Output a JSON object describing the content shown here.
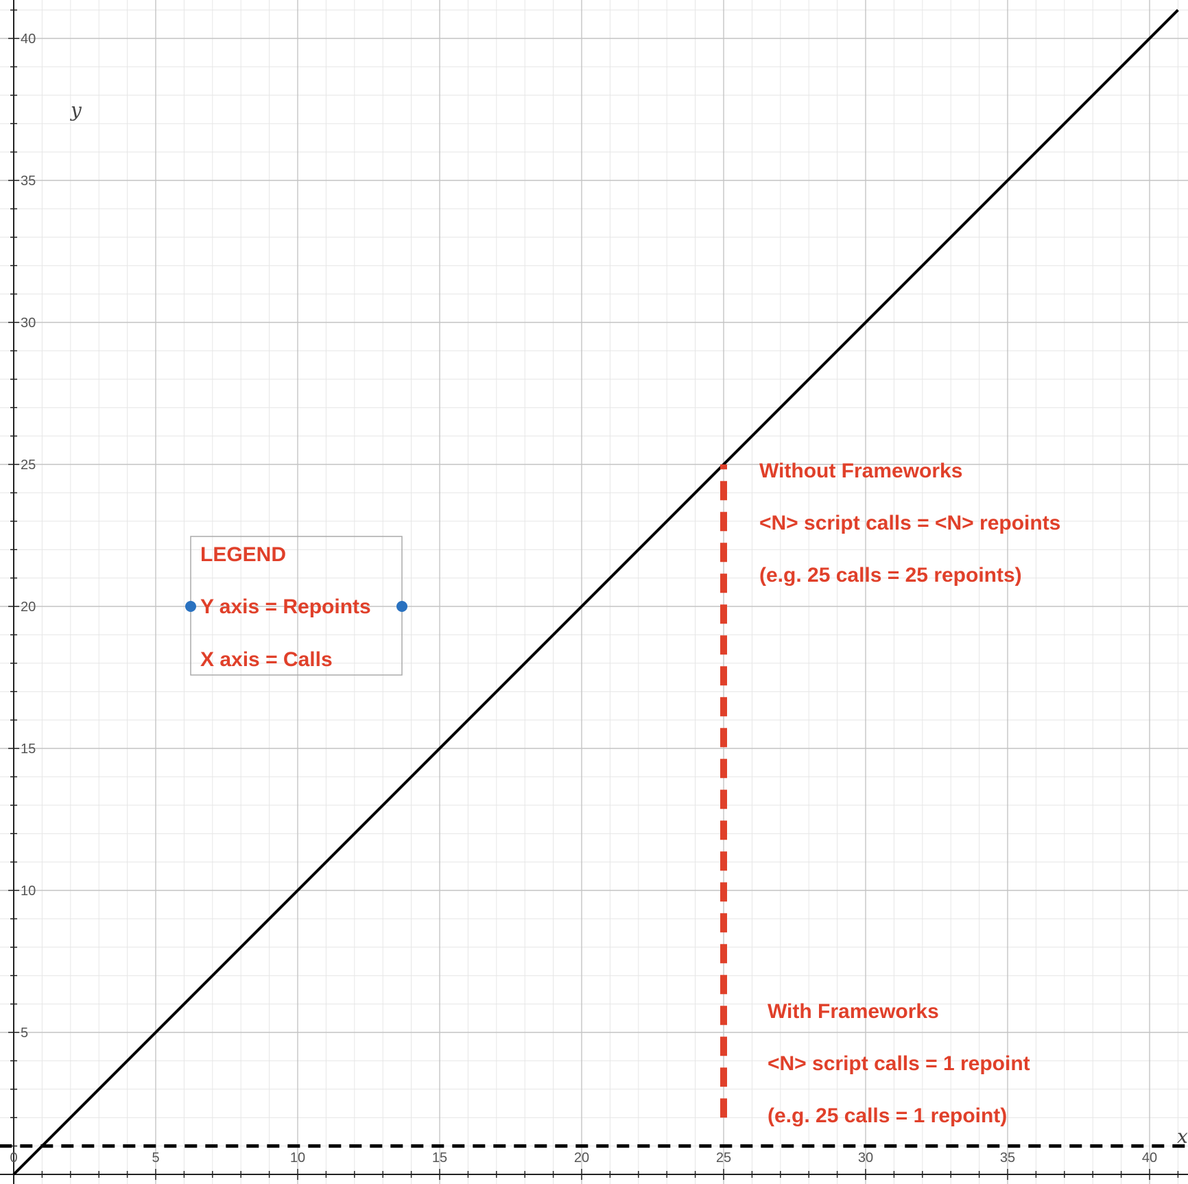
{
  "chart_data": {
    "type": "line",
    "title": "",
    "xlabel": "x",
    "ylabel": "y",
    "xlim": [
      -0.5,
      41.3
    ],
    "ylim": [
      -0.3,
      41.3
    ],
    "xticks": [
      0,
      5,
      10,
      15,
      20,
      25,
      30,
      35,
      40
    ],
    "yticks": [
      5,
      10,
      15,
      20,
      25,
      30,
      35,
      40
    ],
    "grid": true,
    "series": [
      {
        "kind": "line",
        "color": "#000000",
        "style": "solid",
        "points": [
          [
            0,
            0
          ],
          [
            41,
            41
          ]
        ]
      },
      {
        "kind": "line",
        "color": "#000000",
        "style": "dashed",
        "points": [
          [
            -0.5,
            1
          ],
          [
            41.3,
            1
          ]
        ]
      },
      {
        "kind": "line",
        "color": "#e0402a",
        "style": "dashed",
        "points": [
          [
            25,
            2
          ],
          [
            25,
            25
          ]
        ]
      }
    ],
    "legend_box": {
      "title": "LEGEND",
      "lines": [
        "Y axis = Repoints",
        "X axis = Calls"
      ],
      "border_color": "#aaaaaa",
      "handle_color": "#2a72c0"
    },
    "annotations": [
      {
        "name": "without-frameworks",
        "lines": [
          "Without Frameworks",
          "<N> script calls = <N> repoints",
          "(e.g. 25 calls = 25 repoints)"
        ]
      },
      {
        "name": "with-frameworks",
        "lines": [
          "With Frameworks",
          "<N> script calls = 1 repoint",
          "(e.g. 25 calls = 1 repoint)"
        ]
      }
    ],
    "annotation_color": "#e0402a"
  }
}
